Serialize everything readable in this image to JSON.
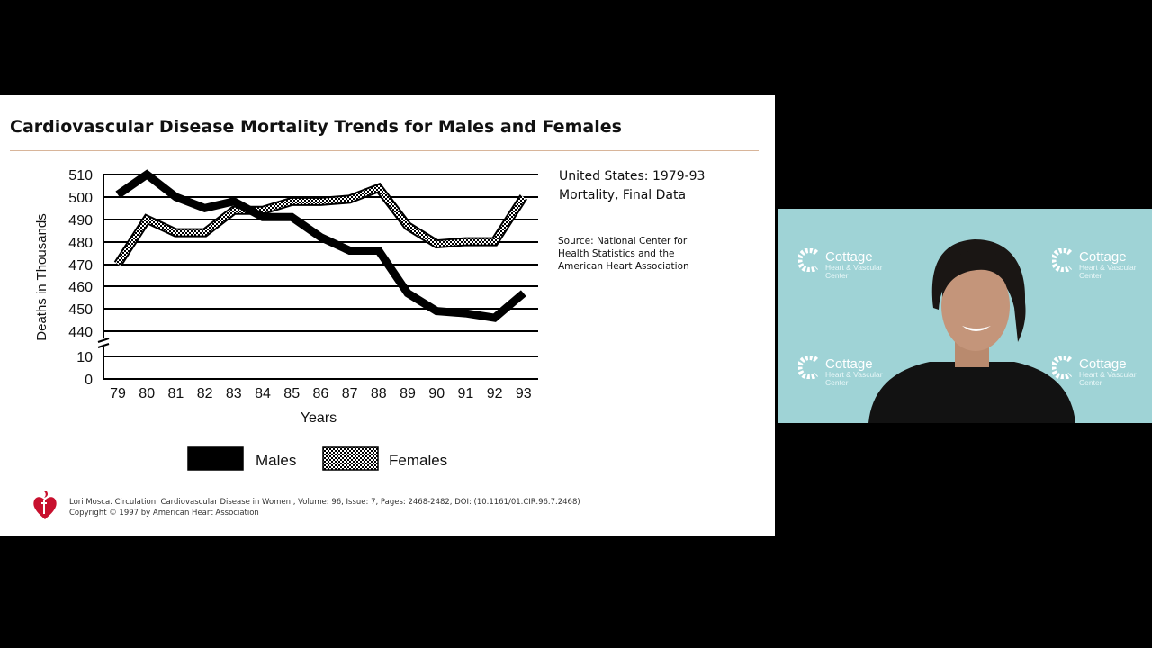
{
  "slide": {
    "title": "Cardiovascular Disease Mortality Trends for Males and Females",
    "info_line1": "United States: 1979-93",
    "info_line2": "Mortality, Final Data",
    "source_line1": "Source: National Center for",
    "source_line2": "Health Statistics and the",
    "source_line3": "American Heart Association",
    "citation_line1": "Lori Mosca. Circulation. Cardiovascular Disease in Women , Volume: 96, Issue: 7, Pages: 2468-2482, DOI: (10.1161/01.CIR.96.7.2468)",
    "citation_line2": "Copyright © 1997 by American Heart Association"
  },
  "chart_data": {
    "type": "line",
    "title": "Cardiovascular Disease Mortality Trends for Males and Females",
    "xlabel": "Years",
    "ylabel": "Deaths in Thousands",
    "x": [
      "79",
      "80",
      "81",
      "82",
      "83",
      "84",
      "85",
      "86",
      "87",
      "88",
      "89",
      "90",
      "91",
      "92",
      "93"
    ],
    "y_ticks": [
      "510",
      "500",
      "490",
      "480",
      "470",
      "460",
      "450",
      "440",
      "10",
      "0"
    ],
    "ylim": [
      440,
      510
    ],
    "axis_break": true,
    "grid": true,
    "legend_position": "bottom",
    "series": [
      {
        "name": "Males",
        "style": "solid-black",
        "values": [
          501,
          510,
          500,
          495,
          498,
          491,
          491,
          482,
          476,
          476,
          457,
          449,
          448,
          446,
          457
        ]
      },
      {
        "name": "Females",
        "style": "checkered",
        "values": [
          470,
          490,
          484,
          484,
          494,
          494,
          498,
          498,
          499,
          504,
          487,
          479,
          480,
          480,
          500
        ]
      }
    ]
  },
  "webcam": {
    "brand_name": "Cottage",
    "brand_sub1": "Heart & Vascular",
    "brand_sub2": "Center",
    "bg_color": "#9fd3d6"
  }
}
